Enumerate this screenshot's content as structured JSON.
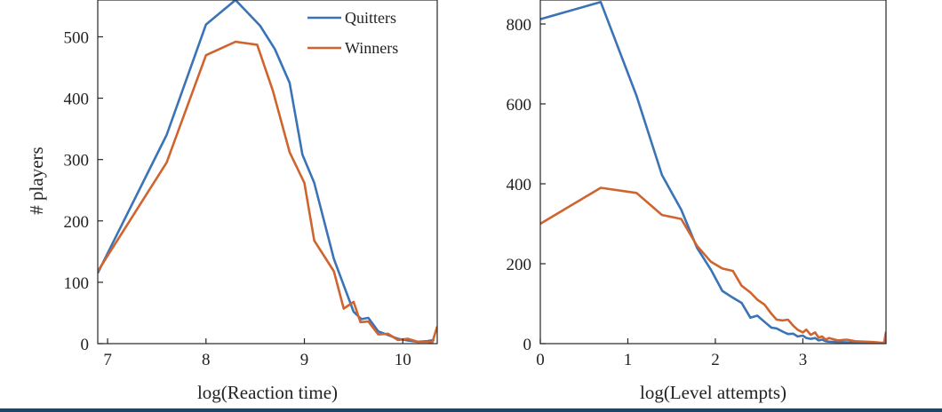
{
  "chart_data": [
    {
      "type": "line",
      "title": "",
      "xlabel": "log(Reaction time)",
      "ylabel": "# players",
      "xlim": [
        6.9,
        10.35
      ],
      "ylim": [
        0,
        560
      ],
      "xticks": [
        7,
        8,
        9,
        10
      ],
      "yticks": [
        0,
        100,
        200,
        300,
        400,
        500
      ],
      "grid": false,
      "legend": "top-right",
      "series": [
        {
          "name": "Quitters",
          "color": "#3a73b6",
          "x": [
            6.9,
            7.6,
            8.0,
            8.3,
            8.55,
            8.7,
            8.85,
            8.98,
            9.1,
            9.3,
            9.5,
            9.58,
            9.65,
            9.75,
            9.85,
            9.95,
            10.05,
            10.15,
            10.25,
            10.32
          ],
          "y": [
            115,
            340,
            520,
            560,
            518,
            480,
            425,
            308,
            262,
            138,
            52,
            40,
            42,
            20,
            14,
            8,
            5,
            3,
            4,
            6
          ]
        },
        {
          "name": "Winners",
          "color": "#d0642e",
          "x": [
            6.9,
            7.6,
            8.0,
            8.3,
            8.52,
            8.68,
            8.85,
            9.0,
            9.1,
            9.3,
            9.4,
            9.5,
            9.57,
            9.65,
            9.75,
            9.85,
            9.95,
            10.05,
            10.15,
            10.25,
            10.3,
            10.35
          ],
          "y": [
            118,
            295,
            470,
            492,
            487,
            412,
            312,
            262,
            168,
            118,
            57,
            68,
            35,
            36,
            15,
            16,
            6,
            8,
            3,
            3,
            2,
            28
          ]
        }
      ]
    },
    {
      "type": "line",
      "title": "",
      "xlabel": "log(Level attempts)",
      "ylabel": "",
      "xlim": [
        0,
        3.95
      ],
      "ylim": [
        0,
        860
      ],
      "xticks": [
        0,
        1,
        2,
        3
      ],
      "yticks": [
        0,
        200,
        400,
        600,
        800
      ],
      "grid": false,
      "series": [
        {
          "name": "Quitters",
          "color": "#3a73b6",
          "x": [
            0,
            0.69,
            1.1,
            1.39,
            1.61,
            1.79,
            1.95,
            2.08,
            2.2,
            2.3,
            2.4,
            2.48,
            2.56,
            2.64,
            2.7,
            2.77,
            2.83,
            2.89,
            2.94,
            3.0,
            3.04,
            3.09,
            3.14,
            3.18,
            3.22,
            3.26,
            3.3,
            3.4,
            3.5,
            3.6,
            3.7,
            3.8,
            3.9,
            3.95
          ],
          "y": [
            812,
            855,
            620,
            422,
            335,
            240,
            185,
            132,
            115,
            102,
            65,
            70,
            55,
            40,
            38,
            30,
            24,
            25,
            18,
            20,
            14,
            12,
            14,
            8,
            10,
            6,
            5,
            4,
            3,
            2,
            2,
            1,
            1,
            1
          ]
        },
        {
          "name": "Winners",
          "color": "#d0642e",
          "x": [
            0,
            0.69,
            1.1,
            1.39,
            1.61,
            1.79,
            1.95,
            2.08,
            2.2,
            2.3,
            2.4,
            2.48,
            2.56,
            2.64,
            2.7,
            2.77,
            2.83,
            2.89,
            2.94,
            3.0,
            3.04,
            3.09,
            3.14,
            3.18,
            3.22,
            3.26,
            3.3,
            3.4,
            3.5,
            3.6,
            3.7,
            3.8,
            3.9,
            3.93,
            3.95
          ],
          "y": [
            300,
            390,
            377,
            322,
            312,
            245,
            205,
            188,
            182,
            145,
            128,
            110,
            98,
            75,
            60,
            58,
            60,
            45,
            35,
            28,
            35,
            22,
            28,
            15,
            18,
            10,
            14,
            8,
            10,
            6,
            5,
            4,
            2,
            3,
            30
          ]
        }
      ]
    }
  ]
}
